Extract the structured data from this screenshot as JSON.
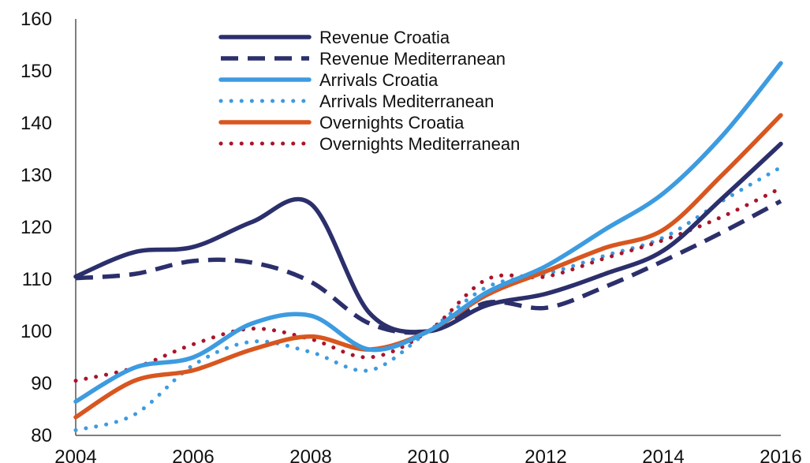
{
  "chart_data": {
    "type": "line",
    "title": "",
    "xlabel": "",
    "ylabel": "",
    "x": [
      2004,
      2005,
      2006,
      2007,
      2008,
      2009,
      2010,
      2011,
      2012,
      2013,
      2014,
      2015,
      2016
    ],
    "xticks": [
      "2004",
      "2006",
      "2008",
      "2010",
      "2012",
      "2014",
      "2016"
    ],
    "yticks": [
      "80",
      "90",
      "100",
      "110",
      "120",
      "130",
      "140",
      "150",
      "160"
    ],
    "xlim": [
      2004,
      2016
    ],
    "ylim": [
      80,
      160
    ],
    "grid": false,
    "legend_position": "top-center",
    "series": [
      {
        "name": "Revenue Croatia",
        "color": "#2b2f6b",
        "style": "solid",
        "values": [
          110.5,
          115.2,
          116.2,
          121.0,
          124.5,
          103.5,
          100.0,
          105.0,
          107.2,
          111.0,
          115.5,
          125.5,
          136.0
        ]
      },
      {
        "name": "Revenue Mediterranean",
        "color": "#2b2f6b",
        "style": "dashed",
        "values": [
          110.2,
          111.0,
          113.5,
          113.2,
          109.5,
          101.5,
          100.0,
          105.5,
          104.5,
          108.5,
          113.5,
          119.0,
          125.0
        ]
      },
      {
        "name": "Arrivals Croatia",
        "color": "#3d9be0",
        "style": "solid",
        "values": [
          86.5,
          93.0,
          95.0,
          101.5,
          103.0,
          96.5,
          100.0,
          107.5,
          112.5,
          119.5,
          126.5,
          137.5,
          151.5
        ]
      },
      {
        "name": "Arrivals Mediterranean",
        "color": "#3d9be0",
        "style": "dotted",
        "values": [
          81.0,
          84.0,
          93.5,
          98.0,
          96.0,
          92.5,
          100.0,
          108.5,
          111.0,
          114.5,
          118.0,
          125.0,
          131.5
        ]
      },
      {
        "name": "Overnights Croatia",
        "color": "#d8561f",
        "style": "solid",
        "values": [
          83.5,
          90.5,
          92.5,
          96.5,
          99.0,
          96.5,
          100.0,
          107.0,
          111.5,
          116.0,
          119.5,
          130.0,
          141.5
        ]
      },
      {
        "name": "Overnights Mediterranean",
        "color": "#a8152b",
        "style": "dotted",
        "values": [
          90.5,
          93.0,
          97.5,
          100.5,
          98.5,
          95.0,
          100.0,
          110.0,
          110.5,
          114.0,
          117.5,
          122.0,
          127.5
        ]
      }
    ]
  }
}
